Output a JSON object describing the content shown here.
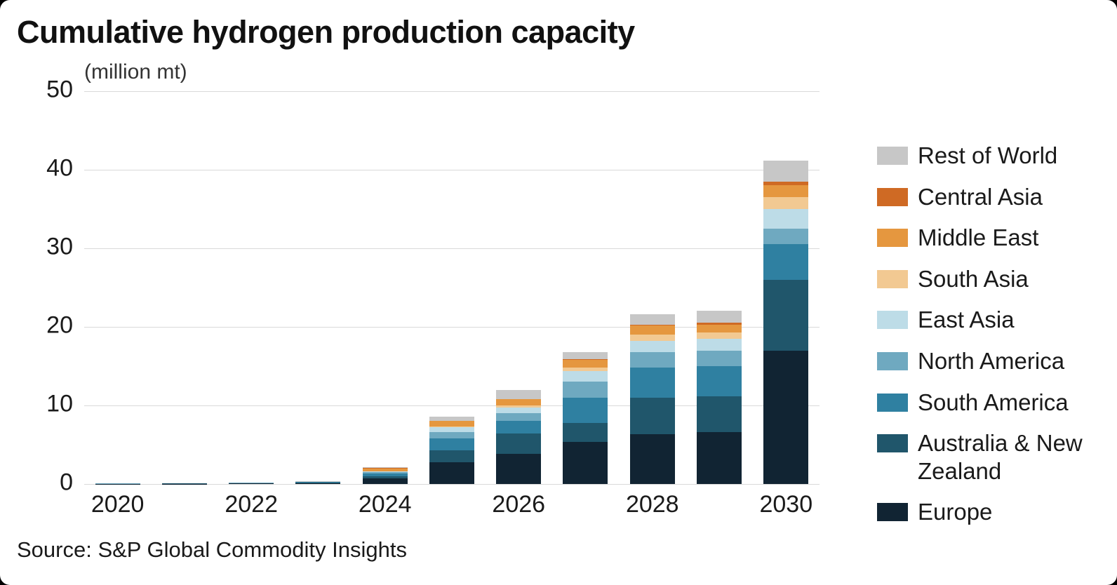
{
  "title": "Cumulative hydrogen production capacity",
  "source": "Source: S&P Global Commodity Insights",
  "colors": {
    "gridline": "#d9d9d9",
    "text": "#1a1a1a",
    "background": "#ffffff"
  },
  "chart_data": {
    "type": "bar",
    "stacked": true,
    "title": "Cumulative hydrogen production capacity",
    "ylabel": "(million mt)",
    "xlabel": "",
    "ylim": [
      0,
      50
    ],
    "yticks": [
      0,
      10,
      20,
      30,
      40,
      50
    ],
    "xticks": [
      "2020",
      "2022",
      "2024",
      "2026",
      "2028",
      "2030"
    ],
    "categories": [
      "2020",
      "2021",
      "2022",
      "2023",
      "2024",
      "2025",
      "2026",
      "2027",
      "2028",
      "2029",
      "2030"
    ],
    "legend_position": "right",
    "grid": true,
    "series": [
      {
        "name": "Europe",
        "color": "#112433",
        "values": [
          0.02,
          0.04,
          0.06,
          0.1,
          0.7,
          2.8,
          3.8,
          5.4,
          6.3,
          6.6,
          17.0
        ]
      },
      {
        "name": "Australia & New Zealand",
        "color": "#20566b",
        "values": [
          0.01,
          0.02,
          0.03,
          0.05,
          0.3,
          1.5,
          2.6,
          2.4,
          4.7,
          4.6,
          9.0
        ]
      },
      {
        "name": "South America",
        "color": "#2f80a1",
        "values": [
          0.01,
          0.02,
          0.03,
          0.08,
          0.3,
          1.5,
          1.6,
          3.2,
          3.8,
          3.8,
          4.5
        ]
      },
      {
        "name": "North America",
        "color": "#6fa9c0",
        "values": [
          0.01,
          0.01,
          0.02,
          0.04,
          0.2,
          0.8,
          1.0,
          2.0,
          2.0,
          2.0,
          2.0
        ]
      },
      {
        "name": "East Asia",
        "color": "#bddce7",
        "values": [
          0.0,
          0.01,
          0.01,
          0.02,
          0.1,
          0.6,
          0.7,
          1.4,
          1.4,
          1.5,
          2.5
        ]
      },
      {
        "name": "South Asia",
        "color": "#f2c992",
        "values": [
          0.0,
          0.0,
          0.0,
          0.01,
          0.05,
          0.15,
          0.3,
          0.4,
          0.8,
          0.8,
          1.5
        ]
      },
      {
        "name": "Middle East",
        "color": "#e5973f",
        "values": [
          0.0,
          0.0,
          0.0,
          0.01,
          0.35,
          0.65,
          0.8,
          1.0,
          1.2,
          1.0,
          1.5
        ]
      },
      {
        "name": "Central Asia",
        "color": "#cf6a24",
        "values": [
          0.0,
          0.0,
          0.0,
          0.0,
          0.02,
          0.05,
          0.05,
          0.1,
          0.1,
          0.2,
          0.5
        ]
      },
      {
        "name": "Rest of World",
        "color": "#c7c7c7",
        "values": [
          0.0,
          0.0,
          0.0,
          0.02,
          0.1,
          0.55,
          1.1,
          0.9,
          1.3,
          1.6,
          2.7
        ]
      }
    ]
  }
}
